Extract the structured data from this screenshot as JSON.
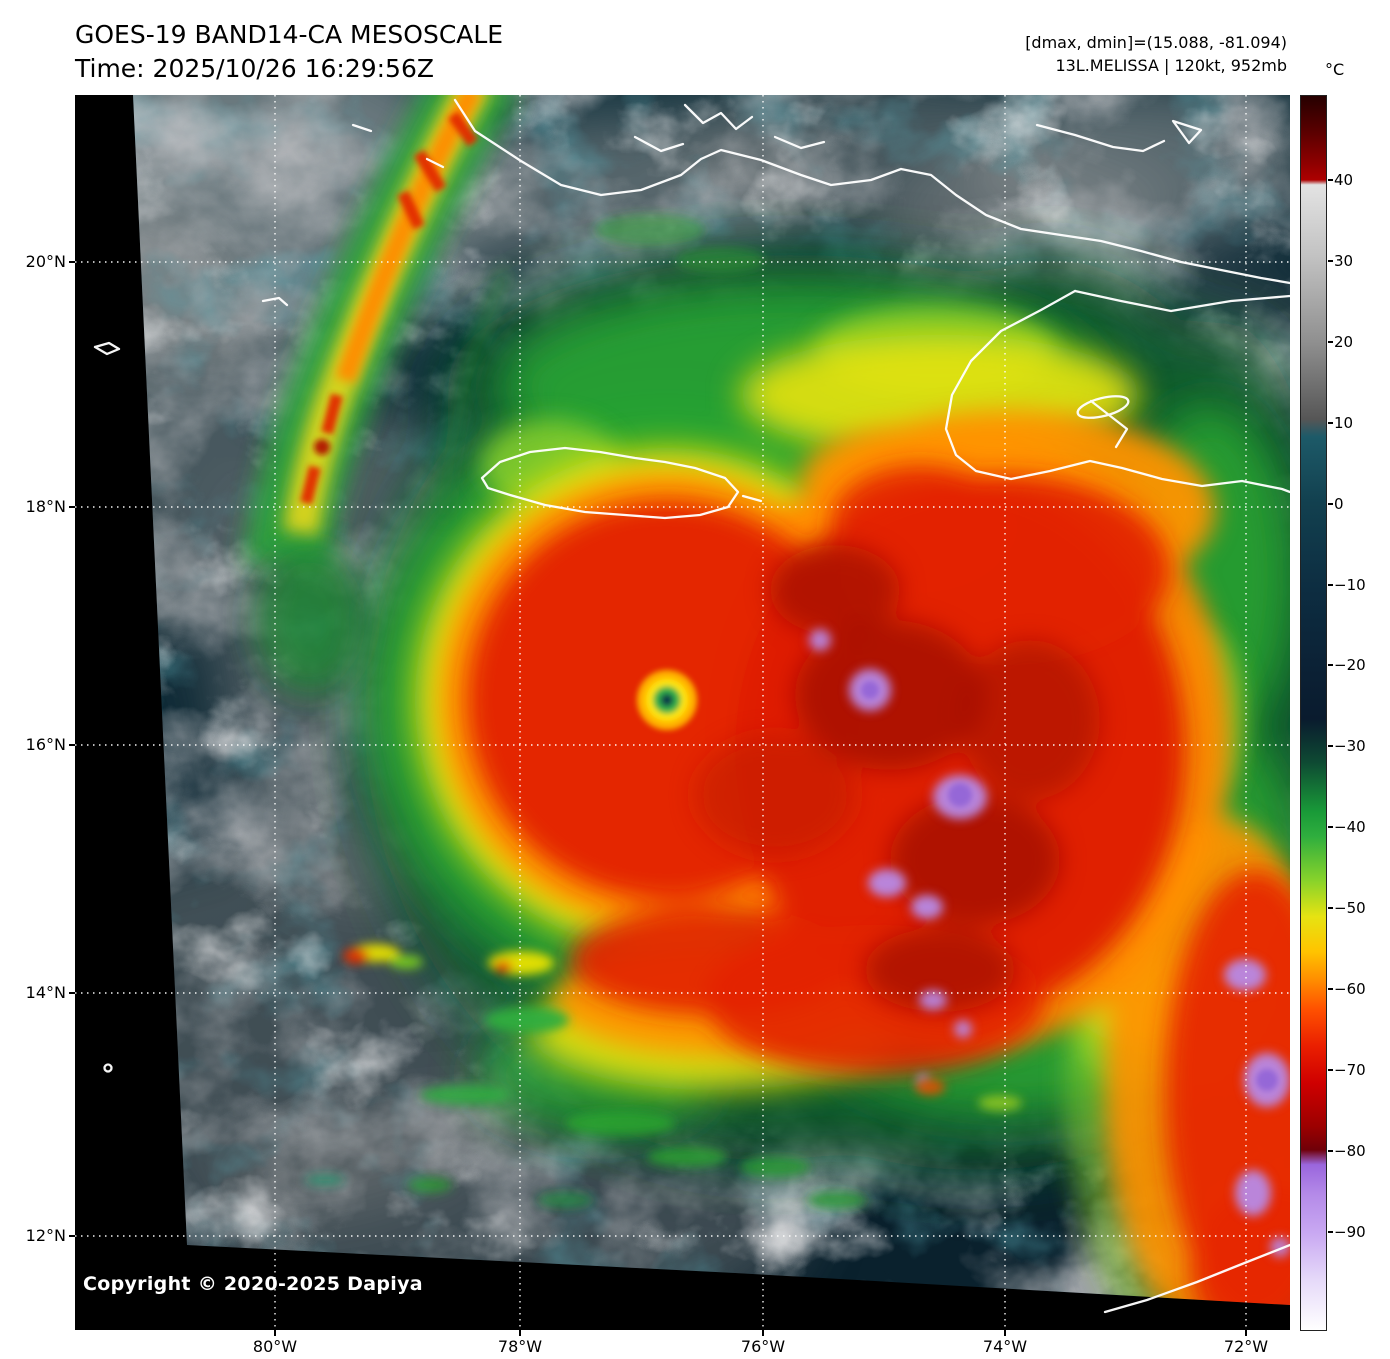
{
  "header": {
    "title": "GOES-19 BAND14-CA MESOSCALE",
    "time_line": "Time: 2025/10/26 16:29:56Z",
    "range_line": "[dmax, dmin]=(15.088, -81.094)",
    "storm_line": "13L.MELISSA | 120kt, 952mb"
  },
  "colorbar": {
    "unit_label": "°C",
    "ticks": [
      "40",
      "30",
      "20",
      "10",
      "0",
      "−10",
      "−20",
      "−30",
      "−40",
      "−50",
      "−60",
      "−70",
      "−80",
      "−90"
    ],
    "gradient_stops": [
      [
        "#260000",
        "0%"
      ],
      [
        "#5c0000",
        "3%"
      ],
      [
        "#8f0000",
        "5.5%"
      ],
      [
        "#ad0000",
        "6.8%"
      ],
      [
        "#e3e3e3",
        "7.2%"
      ],
      [
        "#c2c2c2",
        "13%"
      ],
      [
        "#8f8f8f",
        "20%"
      ],
      [
        "#565656",
        "26.2%"
      ],
      [
        "#1d5a68",
        "27.6%"
      ],
      [
        "#12404f",
        "33%"
      ],
      [
        "#0d2d41",
        "40%"
      ],
      [
        "#0b2034",
        "47%"
      ],
      [
        "#0a1b2e",
        "50.5%"
      ],
      [
        "#0e4a33",
        "54%"
      ],
      [
        "#199a38",
        "58%"
      ],
      [
        "#2fae3e",
        "60%"
      ],
      [
        "#86d22b",
        "63.5%"
      ],
      [
        "#e6e312",
        "66.5%"
      ],
      [
        "#ffc400",
        "69.3%"
      ],
      [
        "#ff9000",
        "71.5%"
      ],
      [
        "#ff5100",
        "74%"
      ],
      [
        "#ea1f00",
        "77%"
      ],
      [
        "#cf0000",
        "80%"
      ],
      [
        "#9c0000",
        "83.5%"
      ],
      [
        "#700008",
        "85.4%"
      ],
      [
        "#9a66dd",
        "86.6%"
      ],
      [
        "#b48ae8",
        "89%"
      ],
      [
        "#c9a9f2",
        "92.2%"
      ],
      [
        "#e6daf9",
        "96%"
      ],
      [
        "#ffffff",
        "100%"
      ]
    ]
  },
  "map": {
    "lat_labels": [
      "20°N",
      "18°N",
      "16°N",
      "14°N",
      "12°N"
    ],
    "lon_labels": [
      "80°W",
      "78°W",
      "76°W",
      "74°W",
      "72°W"
    ],
    "copyright": "Copyright © 2020-2025 Dapiya"
  },
  "chart_data": {
    "type": "heatmap",
    "title": "GOES-19 BAND14-CA MESOSCALE",
    "time": "2025/10/26 16:29:56Z",
    "storm_annotation": "13L.MELISSA | 120kt, 952mb",
    "extent_annotation": "[dmax, dmin]=(15.088, -81.094)",
    "copyright": "Copyright © 2020-2025 Dapiya",
    "colorbar_unit": "°C",
    "colorbar_tick_values": [
      40,
      30,
      20,
      10,
      0,
      -10,
      -20,
      -30,
      -40,
      -50,
      -60,
      -70,
      -80,
      -90
    ],
    "x_tick_labels": [
      "80°W",
      "78°W",
      "76°W",
      "74°W",
      "72°W"
    ],
    "y_tick_labels": [
      "20°N",
      "18°N",
      "16°N",
      "14°N",
      "12°N"
    ],
    "key_colors": {
      "ocean_teal": "#0d2936",
      "warm_cloud_gray": "#8c8c8c",
      "convection_red": "#e32400",
      "coldest_tops_purple": "#b48ae8",
      "coastline_white": "#ffffff"
    }
  }
}
